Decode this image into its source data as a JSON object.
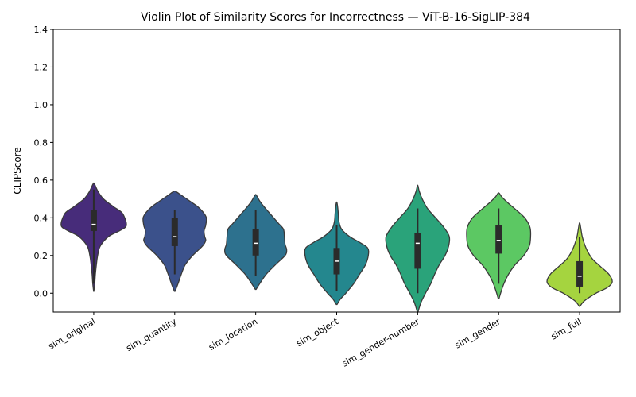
{
  "chart_data": {
    "type": "violin",
    "title": "Violin Plot of Similarity Scores for Incorrectness — ViT-B-16-SigLIP-384",
    "xlabel": "",
    "ylabel": "CLIPScore",
    "ylim": [
      -0.1,
      1.4
    ],
    "yticks": [
      "0.0",
      "0.2",
      "0.4",
      "0.6",
      "0.8",
      "1.0",
      "1.2",
      "1.4"
    ],
    "grid": false,
    "categories": [
      "sim_original",
      "sim_quantity",
      "sim_location",
      "sim_object",
      "sim_gender-number",
      "sim_gender",
      "sim_full"
    ],
    "colors": [
      "#472c7a",
      "#3b518b",
      "#2d718e",
      "#24878e",
      "#2aa37a",
      "#5cc863",
      "#a5d43f"
    ],
    "violins": [
      {
        "name": "sim_original",
        "min": 0.01,
        "max": 0.58,
        "q1": 0.33,
        "median": 0.365,
        "q3": 0.44,
        "whisker_low": 0.05,
        "whisker_high": 0.55,
        "profile": [
          [
            0.01,
            0.003
          ],
          [
            0.05,
            0.03
          ],
          [
            0.1,
            0.05
          ],
          [
            0.15,
            0.08
          ],
          [
            0.2,
            0.12
          ],
          [
            0.25,
            0.2
          ],
          [
            0.3,
            0.45
          ],
          [
            0.33,
            0.78
          ],
          [
            0.35,
            0.97
          ],
          [
            0.37,
            1.0
          ],
          [
            0.4,
            0.95
          ],
          [
            0.43,
            0.85
          ],
          [
            0.46,
            0.6
          ],
          [
            0.5,
            0.3
          ],
          [
            0.54,
            0.13
          ],
          [
            0.58,
            0.02
          ]
        ]
      },
      {
        "name": "sim_quantity",
        "min": 0.01,
        "max": 0.54,
        "q1": 0.25,
        "median": 0.3,
        "q3": 0.4,
        "whisker_low": 0.1,
        "whisker_high": 0.44,
        "profile": [
          [
            0.01,
            0.01
          ],
          [
            0.05,
            0.1
          ],
          [
            0.1,
            0.2
          ],
          [
            0.15,
            0.32
          ],
          [
            0.2,
            0.55
          ],
          [
            0.25,
            0.85
          ],
          [
            0.28,
            0.95
          ],
          [
            0.3,
            0.92
          ],
          [
            0.33,
            0.9
          ],
          [
            0.36,
            0.95
          ],
          [
            0.4,
            0.97
          ],
          [
            0.43,
            0.87
          ],
          [
            0.46,
            0.7
          ],
          [
            0.49,
            0.45
          ],
          [
            0.52,
            0.2
          ],
          [
            0.54,
            0.03
          ]
        ]
      },
      {
        "name": "sim_location",
        "min": 0.02,
        "max": 0.52,
        "q1": 0.2,
        "median": 0.265,
        "q3": 0.34,
        "whisker_low": 0.09,
        "whisker_high": 0.44,
        "profile": [
          [
            0.02,
            0.01
          ],
          [
            0.05,
            0.12
          ],
          [
            0.1,
            0.32
          ],
          [
            0.15,
            0.6
          ],
          [
            0.2,
            0.9
          ],
          [
            0.23,
            0.95
          ],
          [
            0.26,
            0.9
          ],
          [
            0.3,
            0.88
          ],
          [
            0.34,
            0.85
          ],
          [
            0.37,
            0.7
          ],
          [
            0.4,
            0.55
          ],
          [
            0.43,
            0.4
          ],
          [
            0.46,
            0.25
          ],
          [
            0.49,
            0.12
          ],
          [
            0.52,
            0.02
          ]
        ]
      },
      {
        "name": "sim_object",
        "min": -0.06,
        "max": 0.48,
        "q1": 0.1,
        "median": 0.17,
        "q3": 0.24,
        "whisker_low": 0.01,
        "whisker_high": 0.36,
        "profile": [
          [
            -0.06,
            0.01
          ],
          [
            -0.03,
            0.12
          ],
          [
            0.0,
            0.28
          ],
          [
            0.05,
            0.52
          ],
          [
            0.1,
            0.7
          ],
          [
            0.15,
            0.88
          ],
          [
            0.2,
            0.97
          ],
          [
            0.24,
            0.95
          ],
          [
            0.27,
            0.7
          ],
          [
            0.3,
            0.4
          ],
          [
            0.34,
            0.15
          ],
          [
            0.38,
            0.07
          ],
          [
            0.42,
            0.05
          ],
          [
            0.45,
            0.035
          ],
          [
            0.48,
            0.01
          ]
        ]
      },
      {
        "name": "sim_gender-number",
        "min": -0.1,
        "max": 0.57,
        "q1": 0.13,
        "median": 0.265,
        "q3": 0.32,
        "whisker_low": 0.0,
        "whisker_high": 0.45,
        "profile": [
          [
            -0.1,
            0.01
          ],
          [
            -0.05,
            0.1
          ],
          [
            0.0,
            0.24
          ],
          [
            0.05,
            0.4
          ],
          [
            0.1,
            0.52
          ],
          [
            0.15,
            0.66
          ],
          [
            0.2,
            0.84
          ],
          [
            0.25,
            0.95
          ],
          [
            0.3,
            0.97
          ],
          [
            0.35,
            0.8
          ],
          [
            0.4,
            0.55
          ],
          [
            0.45,
            0.3
          ],
          [
            0.5,
            0.14
          ],
          [
            0.54,
            0.05
          ],
          [
            0.57,
            0.01
          ]
        ]
      },
      {
        "name": "sim_gender",
        "min": -0.03,
        "max": 0.53,
        "q1": 0.21,
        "median": 0.28,
        "q3": 0.36,
        "whisker_low": 0.05,
        "whisker_high": 0.45,
        "profile": [
          [
            -0.03,
            0.01
          ],
          [
            0.0,
            0.06
          ],
          [
            0.05,
            0.16
          ],
          [
            0.1,
            0.3
          ],
          [
            0.15,
            0.5
          ],
          [
            0.2,
            0.77
          ],
          [
            0.25,
            0.94
          ],
          [
            0.3,
            0.98
          ],
          [
            0.35,
            0.96
          ],
          [
            0.4,
            0.8
          ],
          [
            0.44,
            0.55
          ],
          [
            0.48,
            0.28
          ],
          [
            0.51,
            0.1
          ],
          [
            0.53,
            0.02
          ]
        ]
      },
      {
        "name": "sim_full",
        "min": -0.07,
        "max": 0.37,
        "q1": 0.035,
        "median": 0.09,
        "q3": 0.17,
        "whisker_low": 0.0,
        "whisker_high": 0.3,
        "profile": [
          [
            -0.07,
            0.01
          ],
          [
            -0.04,
            0.15
          ],
          [
            0.0,
            0.5
          ],
          [
            0.03,
            0.85
          ],
          [
            0.06,
            1.0
          ],
          [
            0.1,
            0.9
          ],
          [
            0.14,
            0.65
          ],
          [
            0.18,
            0.4
          ],
          [
            0.22,
            0.25
          ],
          [
            0.26,
            0.15
          ],
          [
            0.3,
            0.08
          ],
          [
            0.34,
            0.04
          ],
          [
            0.37,
            0.01
          ]
        ]
      }
    ]
  }
}
